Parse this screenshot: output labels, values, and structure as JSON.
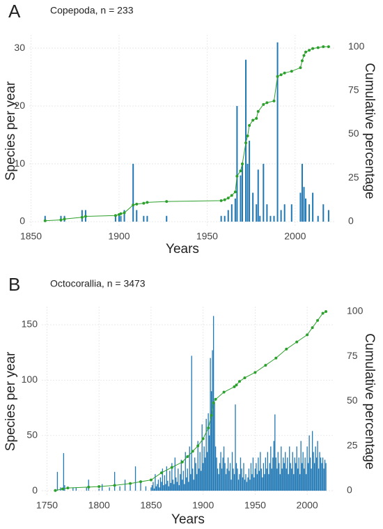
{
  "chart_data": [
    {
      "type": "bar",
      "panel_label": "A",
      "title": "Copepoda, n = 233",
      "x_label": "Years",
      "y_label": "Species per year",
      "y2_label": "Cumulative percentage",
      "xlim": [
        1849,
        2023
      ],
      "xticks": [
        1850,
        1900,
        1950,
        2000
      ],
      "ylim": [
        -0.96,
        32.3
      ],
      "yticks": [
        0,
        10,
        20,
        30
      ],
      "y2lim": [
        -3.2,
        106.8
      ],
      "y2ticks": [
        0,
        25,
        50,
        75,
        100
      ],
      "grid": true,
      "series": [
        {
          "color": "#1f77b4",
          "x": [
            1858,
            1867,
            1869,
            1879,
            1881,
            1898,
            1900,
            1901,
            1903,
            1908,
            1910,
            1914,
            1916,
            1927,
            1958,
            1960,
            1962,
            1964,
            1966,
            1967,
            1969,
            1970,
            1972,
            1973,
            1974,
            1976,
            1978,
            1979,
            1980,
            1982,
            1984,
            1986,
            1988,
            1990,
            1992,
            1994,
            1998,
            2003,
            2004,
            2005,
            2006,
            2008,
            2010,
            2013,
            2016,
            2019
          ],
          "values": [
            1,
            1,
            1,
            2,
            2,
            1,
            1,
            1,
            2,
            10,
            2,
            1,
            1,
            1,
            1,
            1,
            2,
            3,
            4,
            20,
            8,
            10,
            28,
            10,
            14,
            5,
            3,
            9,
            1,
            10,
            3,
            1,
            1,
            31,
            2,
            3,
            3,
            5,
            10,
            6,
            4,
            3,
            5,
            1,
            3,
            2
          ]
        },
        {
          "color": "#2ca02c",
          "axis": "y2",
          "x": [
            1858,
            1867,
            1869,
            1879,
            1881,
            1898,
            1900,
            1901,
            1903,
            1908,
            1910,
            1914,
            1916,
            1927,
            1958,
            1960,
            1962,
            1964,
            1966,
            1967,
            1969,
            1970,
            1972,
            1973,
            1974,
            1976,
            1978,
            1979,
            1982,
            1984,
            1988,
            1990,
            1992,
            1994,
            1998,
            2003,
            2004,
            2005,
            2006,
            2008,
            2010,
            2013,
            2016,
            2019
          ],
          "values": [
            0.5,
            1,
            1.5,
            2.5,
            3,
            3.5,
            4,
            4.5,
            5,
            9.5,
            10,
            10.5,
            11,
            11.5,
            12,
            12.5,
            13.5,
            15,
            17,
            26,
            29,
            33,
            45,
            49,
            55,
            58,
            59,
            63,
            67,
            68,
            69,
            83,
            84,
            85,
            86,
            88,
            92,
            95,
            97,
            98,
            99,
            99.5,
            100,
            100
          ]
        }
      ]
    },
    {
      "type": "bar",
      "panel_label": "B",
      "title": "Octocorallia, n = 3473",
      "x_label": "Years",
      "y_label": "Species per year",
      "y2_label": "Cumulative percentage",
      "xlim": [
        1745,
        2026
      ],
      "xticks": [
        1750,
        1800,
        1850,
        1900,
        1950,
        2000
      ],
      "ylim": [
        -5,
        166.4
      ],
      "yticks": [
        0,
        50,
        100,
        150
      ],
      "y2lim": [
        -3.1,
        102.7
      ],
      "y2ticks": [
        0,
        25,
        50,
        75,
        100
      ],
      "grid": true,
      "series": [
        {
          "color": "#1f77b4",
          "x": [
            1758,
            1760,
            1763,
            1766,
            1767,
            1775,
            1778,
            1788,
            1790,
            1800,
            1803,
            1810,
            1815,
            1820,
            1825,
            1830,
            1835,
            1840,
            1845,
            1850,
            1851,
            1852,
            1853,
            1854,
            1855,
            1856,
            1857,
            1858,
            1859,
            1860,
            1861,
            1862,
            1863,
            1864,
            1865,
            1866,
            1867,
            1868,
            1869,
            1870,
            1871,
            1872,
            1873,
            1874,
            1875,
            1876,
            1877,
            1878,
            1879,
            1880,
            1881,
            1882,
            1883,
            1884,
            1885,
            1886,
            1887,
            1888,
            1889,
            1890,
            1891,
            1892,
            1893,
            1894,
            1895,
            1896,
            1897,
            1898,
            1899,
            1900,
            1901,
            1902,
            1903,
            1904,
            1905,
            1906,
            1907,
            1908,
            1909,
            1910,
            1911,
            1912,
            1913,
            1914,
            1915,
            1916,
            1917,
            1918,
            1919,
            1920,
            1921,
            1922,
            1923,
            1924,
            1925,
            1926,
            1927,
            1928,
            1929,
            1930,
            1931,
            1932,
            1933,
            1934,
            1935,
            1936,
            1937,
            1938,
            1939,
            1940,
            1941,
            1942,
            1943,
            1944,
            1945,
            1946,
            1947,
            1948,
            1949,
            1950,
            1951,
            1952,
            1953,
            1954,
            1955,
            1956,
            1957,
            1958,
            1959,
            1960,
            1961,
            1962,
            1963,
            1964,
            1965,
            1966,
            1967,
            1968,
            1969,
            1970,
            1971,
            1972,
            1973,
            1974,
            1975,
            1976,
            1977,
            1978,
            1979,
            1980,
            1981,
            1982,
            1983,
            1984,
            1985,
            1986,
            1987,
            1988,
            1989,
            1990,
            1991,
            1992,
            1993,
            1994,
            1995,
            1996,
            1997,
            1998,
            1999,
            2000,
            2001,
            2002,
            2003,
            2004,
            2005,
            2006,
            2007,
            2008,
            2009,
            2010,
            2011,
            2012,
            2013,
            2014,
            2015,
            2016,
            2017,
            2018
          ],
          "values": [
            1,
            17,
            3,
            34,
            5,
            3,
            3,
            3,
            10,
            2,
            6,
            3,
            17,
            4,
            10,
            5,
            22,
            8,
            4,
            3,
            5,
            8,
            2,
            15,
            4,
            6,
            10,
            3,
            12,
            8,
            20,
            5,
            14,
            6,
            22,
            9,
            4,
            18,
            7,
            25,
            10,
            6,
            30,
            12,
            8,
            20,
            5,
            15,
            28,
            10,
            18,
            6,
            35,
            12,
            20,
            8,
            40,
            15,
            122,
            20,
            10,
            30,
            25,
            15,
            45,
            20,
            35,
            18,
            60,
            25,
            40,
            30,
            65,
            35,
            70,
            50,
            120,
            90,
            127,
            158,
            80,
            40,
            30,
            20,
            15,
            25,
            35,
            20,
            30,
            40,
            25,
            15,
            20,
            30,
            18,
            25,
            10,
            35,
            20,
            15,
            78,
            25,
            20,
            10,
            15,
            30,
            20,
            12,
            25,
            10,
            15,
            8,
            12,
            20,
            10,
            25,
            15,
            30,
            12,
            20,
            25,
            15,
            30,
            18,
            35,
            20,
            12,
            25,
            15,
            30,
            20,
            35,
            15,
            25,
            40,
            20,
            30,
            45,
            69,
            30,
            20,
            35,
            25,
            15,
            40,
            20,
            30,
            25,
            35,
            20,
            30,
            15,
            40,
            25,
            20,
            35,
            15,
            30,
            25,
            40,
            20,
            30,
            15,
            45,
            25,
            35,
            20,
            30,
            15,
            40,
            25,
            50,
            30,
            20,
            54,
            35,
            25,
            40,
            30,
            45,
            20,
            35,
            30,
            25,
            30,
            20,
            28,
            25
          ]
        },
        {
          "color": "#2ca02c",
          "axis": "y2",
          "x": [
            1758,
            1765,
            1770,
            1790,
            1800,
            1815,
            1830,
            1840,
            1850,
            1860,
            1870,
            1880,
            1885,
            1890,
            1895,
            1900,
            1905,
            1908,
            1910,
            1912,
            1920,
            1930,
            1932,
            1935,
            1940,
            1950,
            1960,
            1970,
            1980,
            1990,
            2000,
            2005,
            2010,
            2015,
            2018
          ],
          "values": [
            0.1,
            1,
            1.5,
            2,
            2.3,
            3,
            4,
            5,
            6,
            10,
            13,
            16,
            19,
            22,
            25,
            29,
            35,
            42,
            49,
            51,
            55,
            58,
            59,
            61,
            63,
            66,
            70,
            74,
            79,
            83,
            87,
            91,
            95,
            99,
            100
          ]
        }
      ]
    }
  ]
}
